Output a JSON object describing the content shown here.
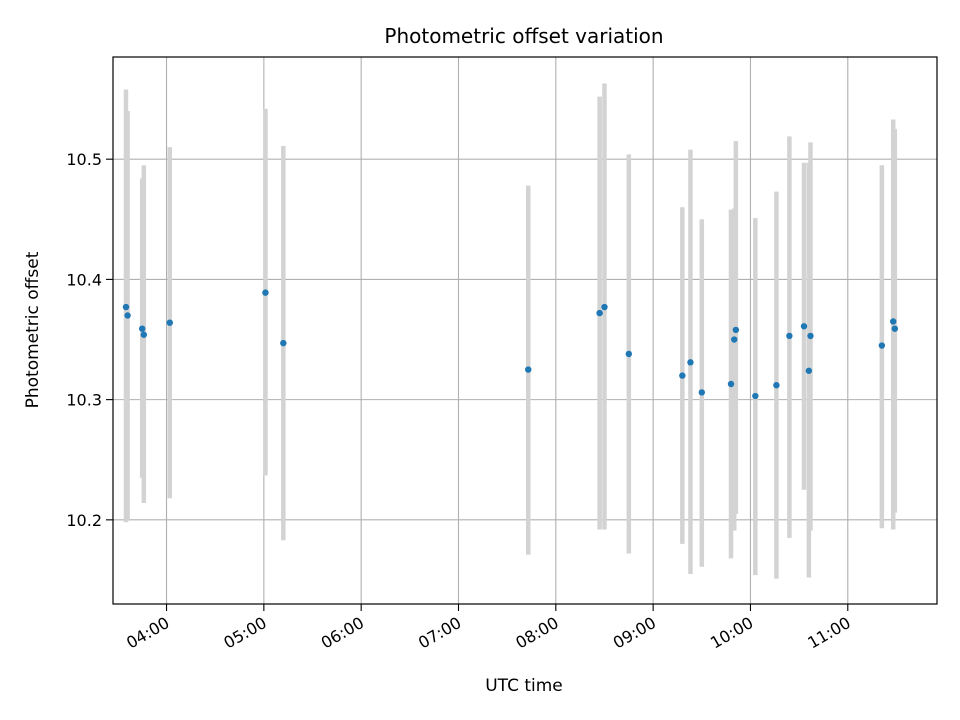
{
  "chart_data": {
    "type": "scatter",
    "title": "Photometric offset variation",
    "xlabel": "UTC time",
    "ylabel": "Photometric offset",
    "xlim": [
      "03:27",
      "11:55"
    ],
    "ylim": [
      10.13,
      10.585
    ],
    "grid": true,
    "x_ticks": [
      "04:00",
      "05:00",
      "06:00",
      "07:00",
      "08:00",
      "09:00",
      "10:00",
      "11:00"
    ],
    "y_ticks": [
      "10.2",
      "10.3",
      "10.4",
      "10.5"
    ],
    "marker_color": "#1f77b4",
    "errorbar_color": "#d3d3d3",
    "points": [
      {
        "x": "03:35",
        "y": 10.377,
        "ylow": 10.198,
        "yhigh": 10.558
      },
      {
        "x": "03:36",
        "y": 10.37,
        "ylow": 10.2,
        "yhigh": 10.54
      },
      {
        "x": "03:45",
        "y": 10.359,
        "ylow": 10.235,
        "yhigh": 10.484
      },
      {
        "x": "03:46",
        "y": 10.354,
        "ylow": 10.214,
        "yhigh": 10.495
      },
      {
        "x": "04:02",
        "y": 10.364,
        "ylow": 10.218,
        "yhigh": 10.51
      },
      {
        "x": "05:01",
        "y": 10.389,
        "ylow": 10.237,
        "yhigh": 10.542
      },
      {
        "x": "05:12",
        "y": 10.347,
        "ylow": 10.183,
        "yhigh": 10.511
      },
      {
        "x": "07:43",
        "y": 10.325,
        "ylow": 10.171,
        "yhigh": 10.478
      },
      {
        "x": "08:27",
        "y": 10.372,
        "ylow": 10.192,
        "yhigh": 10.552
      },
      {
        "x": "08:30",
        "y": 10.377,
        "ylow": 10.192,
        "yhigh": 10.563
      },
      {
        "x": "08:45",
        "y": 10.338,
        "ylow": 10.172,
        "yhigh": 10.504
      },
      {
        "x": "09:18",
        "y": 10.32,
        "ylow": 10.18,
        "yhigh": 10.46
      },
      {
        "x": "09:23",
        "y": 10.331,
        "ylow": 10.155,
        "yhigh": 10.508
      },
      {
        "x": "09:30",
        "y": 10.306,
        "ylow": 10.161,
        "yhigh": 10.45
      },
      {
        "x": "09:48",
        "y": 10.313,
        "ylow": 10.168,
        "yhigh": 10.458
      },
      {
        "x": "09:50",
        "y": 10.35,
        "ylow": 10.191,
        "yhigh": 10.459
      },
      {
        "x": "09:51",
        "y": 10.358,
        "ylow": 10.205,
        "yhigh": 10.515
      },
      {
        "x": "10:03",
        "y": 10.303,
        "ylow": 10.154,
        "yhigh": 10.451
      },
      {
        "x": "10:16",
        "y": 10.312,
        "ylow": 10.151,
        "yhigh": 10.473
      },
      {
        "x": "10:24",
        "y": 10.353,
        "ylow": 10.185,
        "yhigh": 10.519
      },
      {
        "x": "10:33",
        "y": 10.361,
        "ylow": 10.225,
        "yhigh": 10.497
      },
      {
        "x": "10:36",
        "y": 10.324,
        "ylow": 10.152,
        "yhigh": 10.497
      },
      {
        "x": "10:37",
        "y": 10.353,
        "ylow": 10.191,
        "yhigh": 10.514
      },
      {
        "x": "11:21",
        "y": 10.345,
        "ylow": 10.193,
        "yhigh": 10.495
      },
      {
        "x": "11:28",
        "y": 10.365,
        "ylow": 10.192,
        "yhigh": 10.533
      },
      {
        "x": "11:29",
        "y": 10.359,
        "ylow": 10.206,
        "yhigh": 10.525
      }
    ]
  }
}
